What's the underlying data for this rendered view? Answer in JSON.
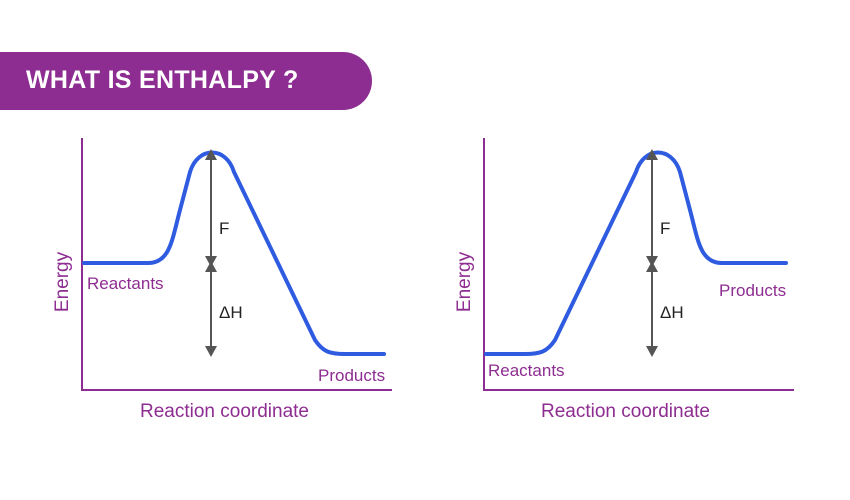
{
  "banner": {
    "title": "WHAT IS ENTHALPY ?"
  },
  "colors": {
    "accent": "#8e2d91",
    "curve": "#2f5be0",
    "arrow": "#555555"
  },
  "diagrams": [
    {
      "kind": "exothermic",
      "y_axis_label": "Energy",
      "x_axis_label": "Reaction coordinate",
      "reactants_label": "Reactants",
      "products_label": "Products",
      "activation_label": "F",
      "enthalpy_label": "ΔH"
    },
    {
      "kind": "endothermic",
      "y_axis_label": "Energy",
      "x_axis_label": "Reaction coordinate",
      "reactants_label": "Reactants",
      "products_label": "Products",
      "activation_label": "F",
      "enthalpy_label": "ΔH"
    }
  ]
}
